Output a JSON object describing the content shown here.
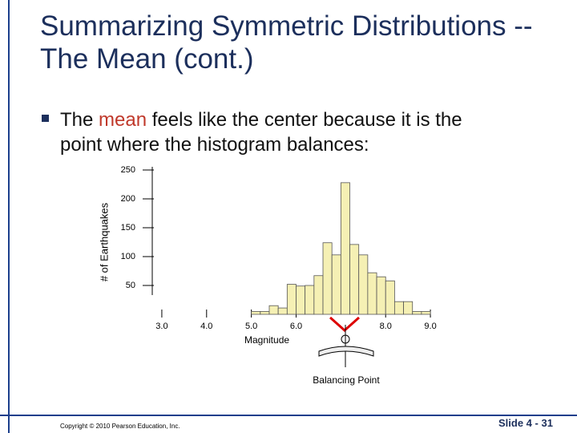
{
  "slide": {
    "title": [
      "Summarizing Symmetric Distributions --",
      "The Mean (cont.)"
    ],
    "bullet": {
      "before": "The ",
      "highlight": "mean",
      "after": " feels like the center because it is the",
      "line2": "point where the histogram balances:"
    },
    "copyright": "Copyright © 2010 Pearson Education, Inc.",
    "slide_number": "Slide 4 - 31"
  },
  "chart_data": {
    "type": "histogram",
    "bins": [
      5.0,
      5.2,
      5.4,
      5.6,
      5.8,
      6.0,
      6.2,
      6.4,
      6.6,
      6.8,
      7.0,
      7.2,
      7.4,
      7.6,
      7.8,
      8.0,
      8.2,
      8.4,
      8.6,
      8.8,
      9.0
    ],
    "values": [
      5,
      5,
      15,
      11,
      52,
      49,
      50,
      67,
      124,
      103,
      228,
      121,
      103,
      72,
      65,
      58,
      22,
      22,
      5,
      5
    ],
    "color": "#f5f0b4",
    "xlabel": "Magnitude",
    "ylabel": "# of Earthquakes",
    "annotation": "Balancing Point",
    "xlim": [
      2.5,
      9.5
    ],
    "ylim": [
      0,
      250
    ],
    "xticks": [
      {
        "value": 3,
        "label": "3.0"
      },
      {
        "value": 4,
        "label": "4.0"
      },
      {
        "value": 5,
        "label": "5.0"
      },
      {
        "value": 6,
        "label": "6.0"
      },
      {
        "value": 8,
        "label": "8.0"
      },
      {
        "value": 9,
        "label": "9.0"
      }
    ],
    "yticks": [
      50,
      100,
      150,
      200,
      250
    ]
  }
}
